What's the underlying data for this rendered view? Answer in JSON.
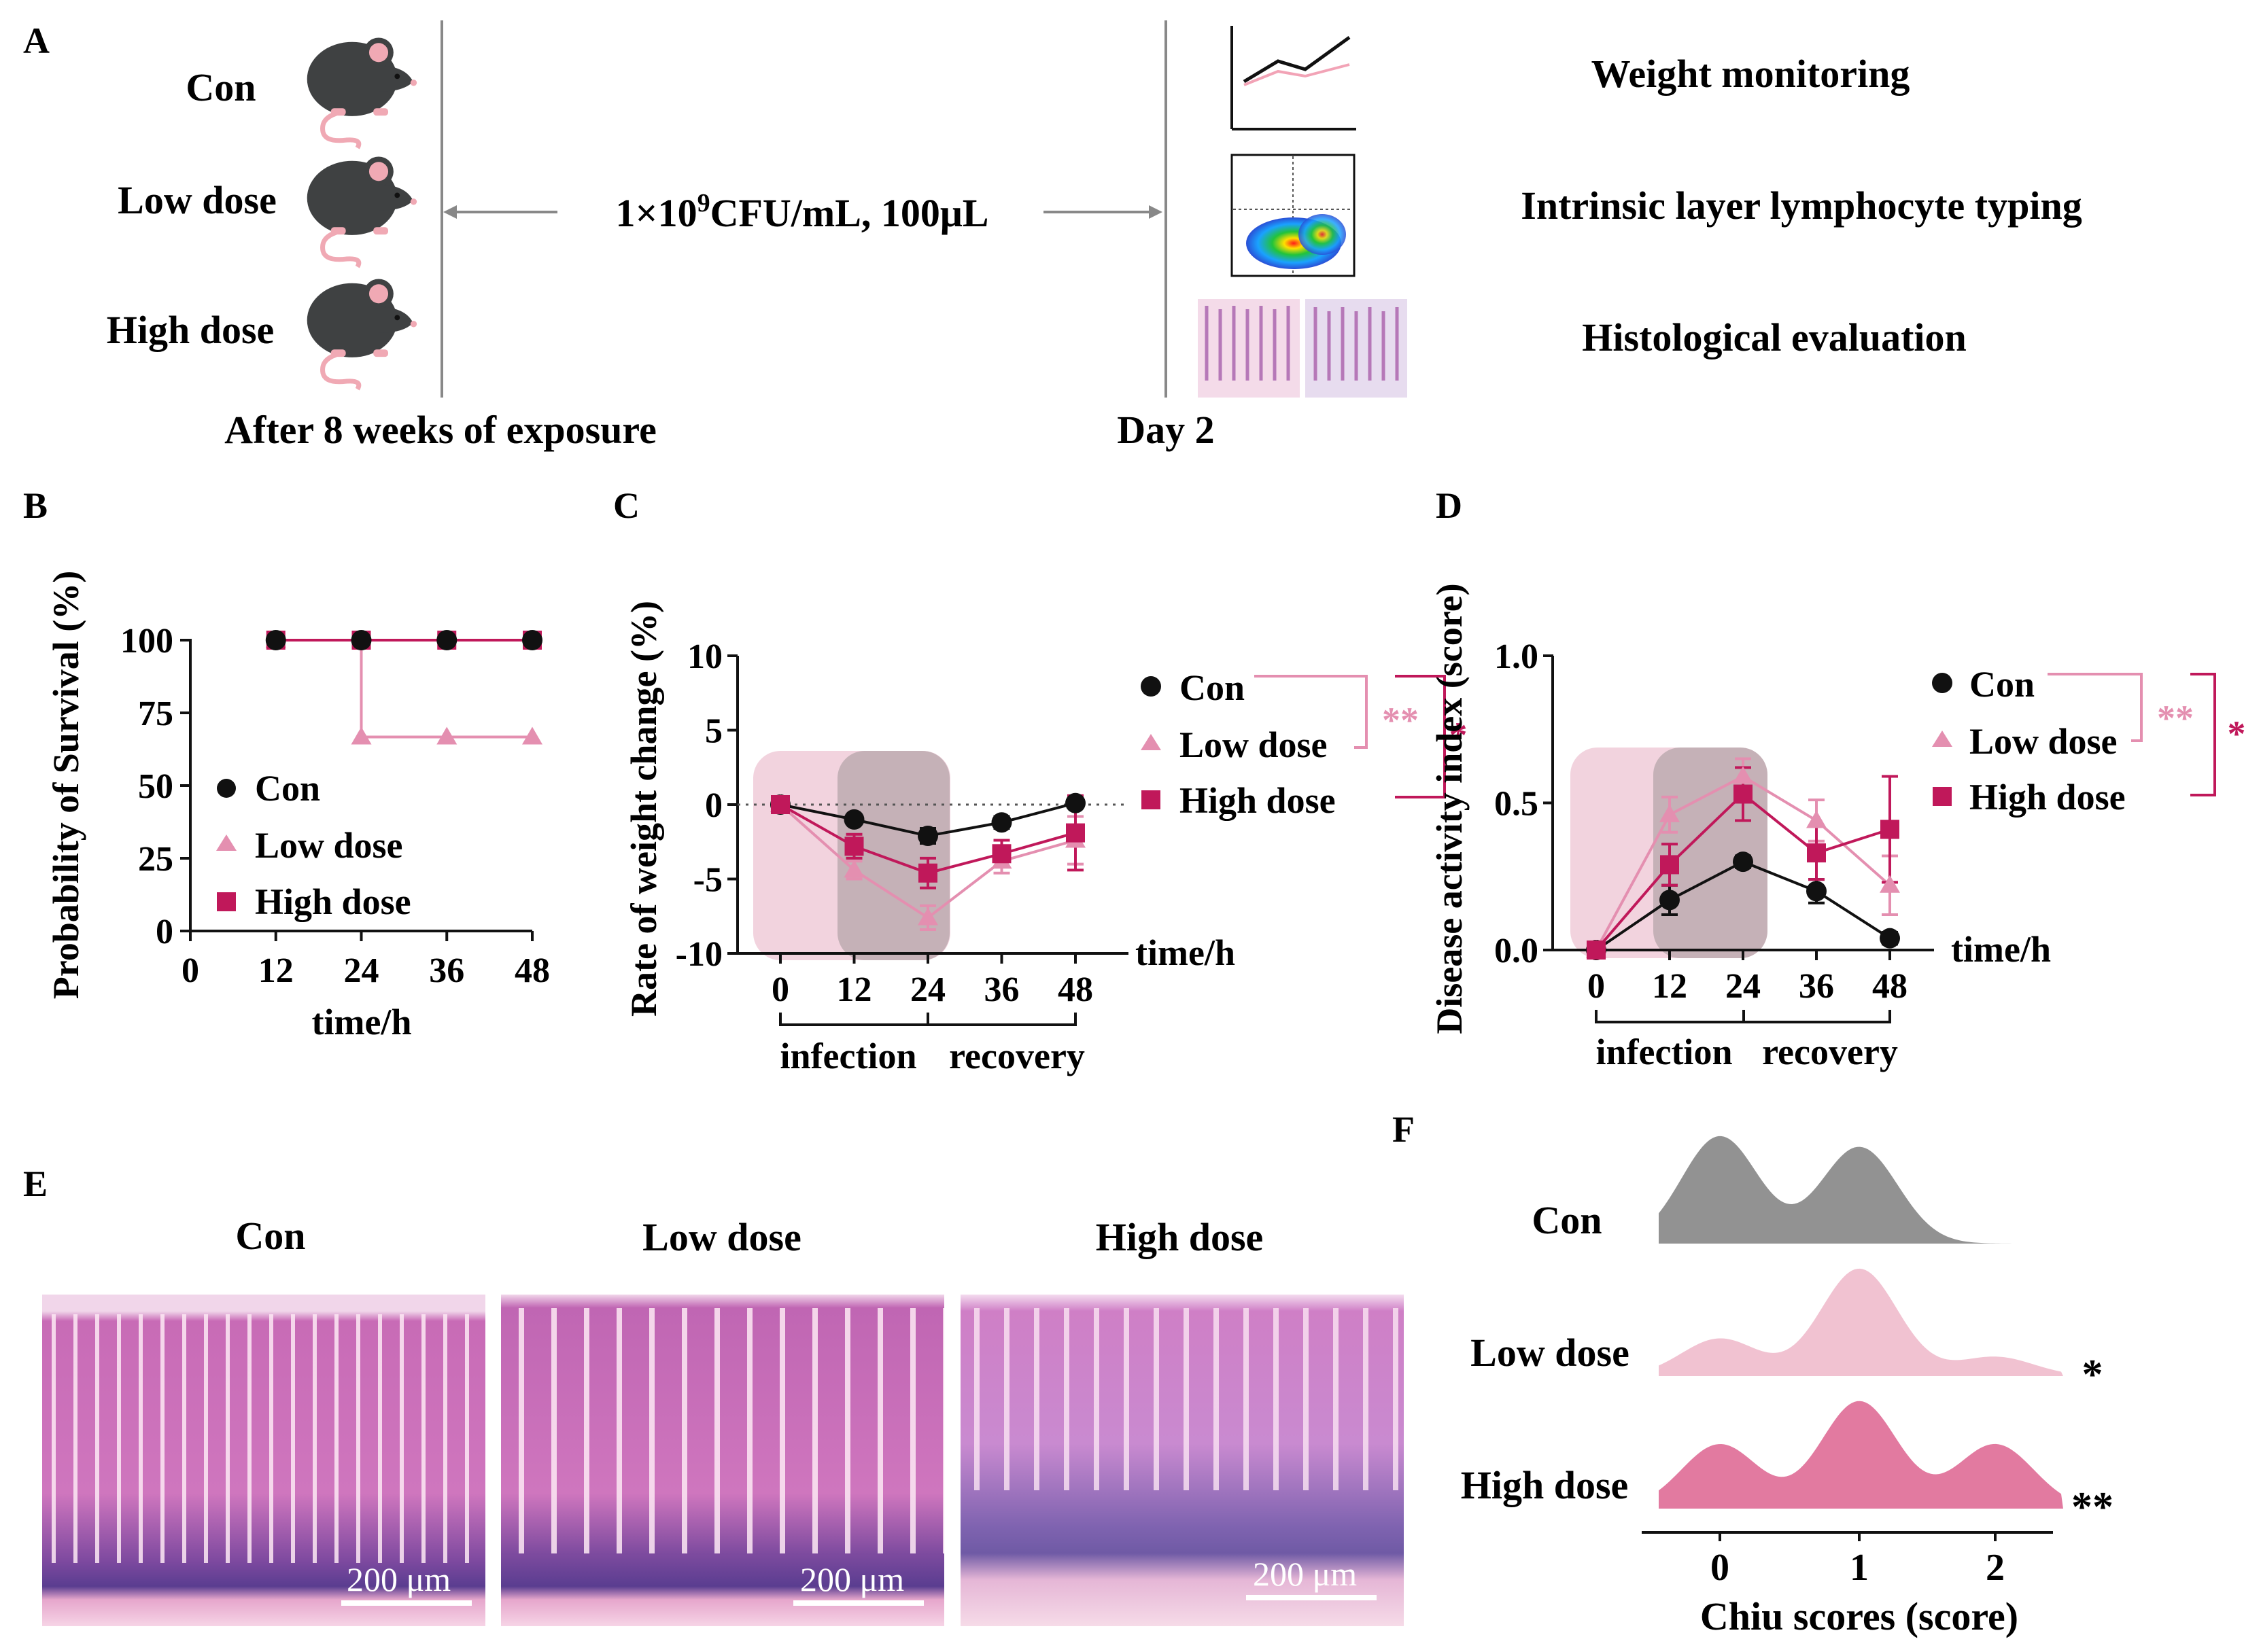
{
  "panel_a": {
    "label": "A",
    "groups": [
      "Con",
      "Low dose",
      "High dose"
    ],
    "dose_text": "1×10",
    "dose_sup": "9",
    "dose_rest": "CFU/mL, 100μL",
    "exposure_label": "After 8 weeks of exposure",
    "day_label": "Day 2",
    "outcomes": [
      "Weight monitoring",
      "Intrinsic layer lymphocyte typing",
      "Histological evaluation"
    ],
    "icons": [
      "mouse-icon",
      "line-chart-icon",
      "flow-cytometry-icon",
      "histology-icon"
    ]
  },
  "panel_e": {
    "label": "E",
    "titles": [
      "Con",
      "Low dose",
      "High dose"
    ],
    "scale_bar": "200 μm"
  },
  "colors": {
    "con": "#111111",
    "low": "#e48fb0",
    "high": "#c0185a",
    "shade_pink": "#f2d3de",
    "shade_gray": "#b9a9ad",
    "con_ridge": "#8c8c8c",
    "low_ridge": "#f0bfcf",
    "high_ridge": "#e0739b"
  },
  "chart_data": [
    {
      "panel": "B",
      "type": "line",
      "ylabel": "Probability of Survival (%)",
      "xlabel": "time/h",
      "x": [
        0,
        12,
        24,
        36,
        48
      ],
      "xlim": [
        0,
        48
      ],
      "ylim": [
        0,
        100
      ],
      "yticks": [
        0,
        25,
        50,
        75,
        100
      ],
      "series": [
        {
          "name": "Con",
          "points": [
            [
              12,
              100
            ],
            [
              24,
              100
            ],
            [
              36,
              100
            ],
            [
              48,
              100
            ]
          ]
        },
        {
          "name": "Low dose",
          "points": [
            [
              12,
              100
            ],
            [
              24,
              66.7
            ],
            [
              36,
              66.7
            ],
            [
              48,
              66.7
            ]
          ]
        },
        {
          "name": "High dose",
          "points": [
            [
              12,
              100
            ],
            [
              24,
              100
            ],
            [
              36,
              100
            ],
            [
              48,
              100
            ]
          ]
        }
      ],
      "legend": [
        "Con",
        "Low dose",
        "High dose"
      ]
    },
    {
      "panel": "C",
      "type": "line",
      "ylabel": "Rate of weight change (%)",
      "xlabel": "time/h",
      "x": [
        0,
        12,
        24,
        36,
        48
      ],
      "ylim": [
        -10,
        10
      ],
      "yticks": [
        -10,
        -5,
        0,
        5,
        10
      ],
      "phases": [
        "infection",
        "recovery"
      ],
      "series": [
        {
          "name": "Con",
          "values": [
            0,
            -1.0,
            -2.1,
            -1.2,
            0.1
          ],
          "err": [
            0.2,
            0.3,
            0.5,
            0.4,
            0.3
          ]
        },
        {
          "name": "Low dose",
          "values": [
            0,
            -4.4,
            -7.6,
            -3.8,
            -2.4
          ],
          "err": [
            0.2,
            0.6,
            0.8,
            0.8,
            1.6
          ]
        },
        {
          "name": "High dose",
          "values": [
            0,
            -2.8,
            -4.6,
            -3.3,
            -1.9
          ],
          "err": [
            0.2,
            0.8,
            1.0,
            0.9,
            2.5
          ]
        }
      ],
      "legend": [
        "Con",
        "Low dose",
        "High dose"
      ],
      "significance": [
        "**",
        "*"
      ]
    },
    {
      "panel": "D",
      "type": "line",
      "ylabel": "Disease activity index (score)",
      "xlabel": "time/h",
      "x": [
        0,
        12,
        24,
        36,
        48
      ],
      "ylim": [
        0,
        1
      ],
      "yticks": [
        "0.0",
        "0.5",
        "1.0"
      ],
      "phases": [
        "infection",
        "recovery"
      ],
      "series": [
        {
          "name": "Con",
          "values": [
            0,
            0.17,
            0.3,
            0.2,
            0.04
          ],
          "err": [
            0.01,
            0.05,
            0.02,
            0.04,
            0.02
          ]
        },
        {
          "name": "Low dose",
          "values": [
            0,
            0.46,
            0.59,
            0.44,
            0.22
          ],
          "err": [
            0.01,
            0.06,
            0.06,
            0.07,
            0.1
          ]
        },
        {
          "name": "High dose",
          "values": [
            0,
            0.29,
            0.53,
            0.33,
            0.41
          ],
          "err": [
            0.01,
            0.07,
            0.09,
            0.09,
            0.18
          ]
        }
      ],
      "legend": [
        "Con",
        "Low dose",
        "High dose"
      ],
      "significance": [
        "**",
        "*"
      ]
    },
    {
      "panel": "F",
      "type": "area",
      "title": "",
      "xlabel": "Chiu scores (score)",
      "x": [
        0,
        1,
        2
      ],
      "series": [
        {
          "name": "Con",
          "values": [
            1.0,
            0.9,
            0.0
          ],
          "significance": ""
        },
        {
          "name": "Low dose",
          "values": [
            0.35,
            1.0,
            0.18
          ],
          "significance": "*"
        },
        {
          "name": "High dose",
          "values": [
            0.6,
            1.0,
            0.6
          ],
          "significance": "**"
        }
      ]
    }
  ]
}
